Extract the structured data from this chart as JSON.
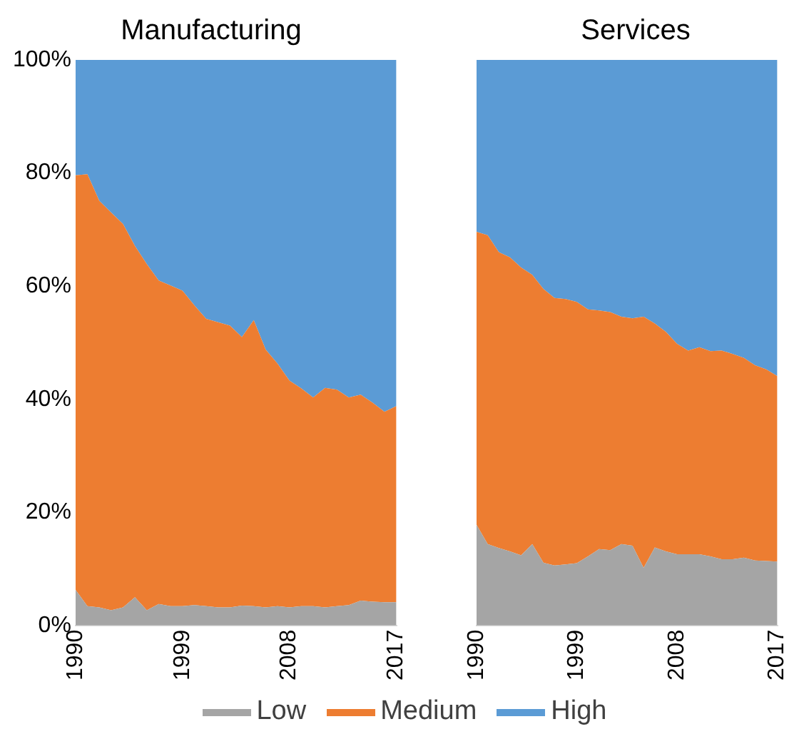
{
  "chart_data": [
    {
      "type": "area",
      "title": "Manufacturing",
      "stacked": true,
      "legend": "bottom",
      "grid": false,
      "x": [
        1990,
        1991,
        1992,
        1993,
        1994,
        1995,
        1996,
        1997,
        1998,
        1999,
        2000,
        2001,
        2002,
        2003,
        2004,
        2005,
        2006,
        2007,
        2008,
        2009,
        2010,
        2011,
        2012,
        2013,
        2014,
        2015,
        2016,
        2017
      ],
      "xlim": [
        1990,
        2017
      ],
      "xticks": [
        1990,
        1999,
        2008,
        2017
      ],
      "ylim": [
        0,
        100
      ],
      "yticks": [
        {
          "value": 0,
          "label": "0%"
        },
        {
          "value": 20,
          "label": "20%"
        },
        {
          "value": 40,
          "label": "40%"
        },
        {
          "value": 60,
          "label": "60%"
        },
        {
          "value": 80,
          "label": "80%"
        },
        {
          "value": 100,
          "label": "100%"
        }
      ],
      "series": [
        {
          "name": "Low",
          "color": "#a5a5a5",
          "values": [
            6.3,
            3.4,
            3.2,
            2.7,
            3.2,
            5.0,
            2.7,
            3.8,
            3.4,
            3.4,
            3.6,
            3.4,
            3.2,
            3.2,
            3.5,
            3.4,
            3.2,
            3.4,
            3.2,
            3.4,
            3.4,
            3.2,
            3.4,
            3.6,
            4.4,
            4.2,
            4.1,
            4.1
          ]
        },
        {
          "name": "Medium",
          "color": "#ed7d31",
          "values": [
            73.3,
            76.4,
            71.9,
            70.3,
            67.8,
            62.1,
            61.2,
            57.2,
            56.7,
            55.8,
            53.0,
            50.8,
            50.4,
            49.8,
            47.5,
            50.6,
            45.6,
            42.9,
            40.1,
            38.5,
            36.9,
            38.8,
            38.3,
            36.7,
            36.4,
            35.2,
            33.7,
            34.7
          ]
        },
        {
          "name": "High",
          "color": "#5b9bd5",
          "values": [
            20.4,
            20.2,
            24.9,
            27.0,
            29.0,
            32.9,
            36.1,
            39.0,
            39.9,
            40.8,
            43.4,
            45.8,
            46.4,
            47.0,
            49.0,
            46.0,
            51.2,
            53.7,
            56.7,
            58.1,
            59.7,
            58.0,
            58.3,
            59.7,
            59.2,
            60.6,
            62.2,
            61.2
          ]
        }
      ]
    },
    {
      "type": "area",
      "title": "Services",
      "stacked": true,
      "grid": false,
      "tick_labels": "x",
      "x": [
        1990,
        1991,
        1992,
        1993,
        1994,
        1995,
        1996,
        1997,
        1998,
        1999,
        2000,
        2001,
        2002,
        2003,
        2004,
        2005,
        2006,
        2007,
        2008,
        2009,
        2010,
        2011,
        2012,
        2013,
        2014,
        2015,
        2016,
        2017
      ],
      "xlim": [
        1990,
        2017
      ],
      "xticks": [
        1990,
        1999,
        2008,
        2017
      ],
      "ylim": [
        0,
        100
      ],
      "series": [
        {
          "color": "#a5a5a5",
          "values": [
            17.8,
            14.4,
            13.7,
            13.1,
            12.4,
            14.4,
            11.1,
            10.6,
            10.8,
            11.0,
            12.2,
            13.5,
            13.3,
            14.4,
            14.1,
            10.2,
            13.8,
            13.1,
            12.6,
            12.6,
            12.6,
            12.2,
            11.7,
            11.7,
            12.0,
            11.5,
            11.4,
            11.3
          ]
        },
        {
          "color": "#ed7d31",
          "values": [
            51.8,
            54.6,
            52.3,
            52.0,
            50.9,
            47.6,
            48.4,
            47.3,
            46.9,
            46.2,
            43.7,
            42.2,
            42.1,
            40.2,
            40.2,
            44.4,
            39.6,
            38.8,
            37.2,
            36.0,
            36.6,
            36.3,
            36.9,
            36.3,
            35.3,
            34.5,
            33.9,
            32.8
          ]
        },
        {
          "color": "#5b9bd5",
          "values": [
            30.4,
            31.0,
            34.0,
            34.9,
            36.7,
            38.0,
            40.5,
            42.1,
            42.3,
            42.8,
            44.1,
            44.3,
            44.6,
            45.4,
            45.7,
            45.4,
            46.6,
            48.1,
            50.2,
            51.4,
            50.8,
            51.5,
            51.4,
            52.0,
            52.7,
            54.0,
            54.7,
            55.9
          ]
        }
      ]
    }
  ]
}
